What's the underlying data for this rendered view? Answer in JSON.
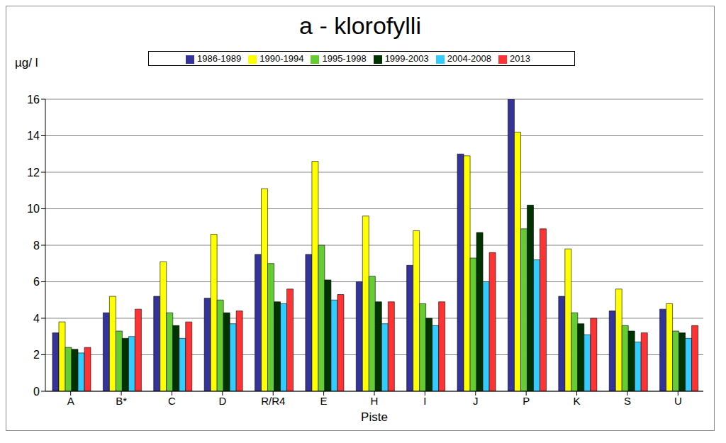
{
  "chart_data": {
    "type": "bar",
    "title": "a - klorofylli",
    "y_label": "µg/ l",
    "x_label": "Piste",
    "categories": [
      "A",
      "B*",
      "C",
      "D",
      "R/R4",
      "E",
      "H",
      "I",
      "J",
      "P",
      "K",
      "S",
      "U"
    ],
    "series": [
      {
        "name": "1986-1989",
        "color": "#333399",
        "values": [
          3.2,
          4.3,
          5.2,
          5.1,
          7.5,
          7.5,
          6.0,
          6.9,
          13.0,
          16.0,
          5.2,
          4.4,
          4.5
        ]
      },
      {
        "name": "1990-1994",
        "color": "#ffff00",
        "values": [
          3.8,
          5.2,
          7.1,
          8.6,
          11.1,
          12.6,
          9.6,
          8.8,
          12.9,
          14.2,
          7.8,
          5.6,
          4.8
        ]
      },
      {
        "name": "1995-1998",
        "color": "#66cc33",
        "values": [
          2.4,
          3.3,
          4.3,
          5.0,
          7.0,
          8.0,
          6.3,
          4.8,
          7.3,
          8.9,
          4.3,
          3.6,
          3.3
        ]
      },
      {
        "name": "1999-2003",
        "color": "#003300",
        "values": [
          2.3,
          2.9,
          3.6,
          4.3,
          4.9,
          6.1,
          4.9,
          4.0,
          8.7,
          10.2,
          3.7,
          3.3,
          3.2
        ]
      },
      {
        "name": "2004-2008",
        "color": "#33ccff",
        "values": [
          2.1,
          3.0,
          2.9,
          3.7,
          4.8,
          5.0,
          3.7,
          3.6,
          6.0,
          7.2,
          3.1,
          2.7,
          2.9
        ]
      },
      {
        "name": "2013",
        "color": "#ff3333",
        "values": [
          2.4,
          4.5,
          3.8,
          4.4,
          5.6,
          5.3,
          4.9,
          4.9,
          7.6,
          8.9,
          4.0,
          3.2,
          3.6
        ]
      }
    ],
    "ylim": [
      0,
      16
    ],
    "yticks": [
      0,
      2,
      4,
      6,
      8,
      10,
      12,
      14,
      16
    ],
    "grid": true,
    "legend": "top"
  }
}
